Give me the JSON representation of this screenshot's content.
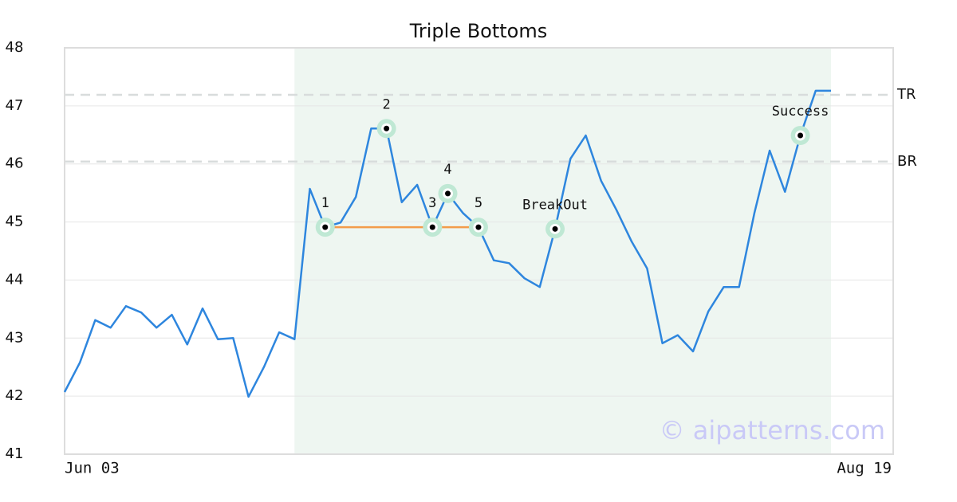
{
  "chart_data": {
    "type": "line",
    "title": "Triple Bottoms",
    "categories": [
      "Jun 03",
      null,
      null,
      null,
      null,
      null,
      null,
      null,
      null,
      null,
      null,
      null,
      null,
      null,
      null,
      null,
      null,
      null,
      null,
      null,
      null,
      null,
      null,
      null,
      null,
      null,
      null,
      null,
      null,
      null,
      null,
      null,
      null,
      null,
      null,
      null,
      null,
      null,
      null,
      null,
      null,
      null,
      null,
      null,
      null,
      null,
      null,
      null,
      null,
      null,
      "Aug 19"
    ],
    "values": [
      42.07,
      42.58,
      43.31,
      43.18,
      43.55,
      43.44,
      43.18,
      43.4,
      42.89,
      43.51,
      42.98,
      43.0,
      41.99,
      42.5,
      43.1,
      42.98,
      45.57,
      44.91,
      44.99,
      45.43,
      46.61,
      46.61,
      45.34,
      45.64,
      44.91,
      45.49,
      45.15,
      44.91,
      44.34,
      44.29,
      44.03,
      43.88,
      44.88,
      46.09,
      46.49,
      45.71,
      45.21,
      44.66,
      44.2,
      42.91,
      43.05,
      42.77,
      43.46,
      43.88,
      43.88,
      45.15,
      46.23,
      45.52,
      46.49,
      47.26,
      47.26
    ],
    "color": "#2e86de",
    "ylim": [
      41,
      48
    ],
    "yticks": [
      41,
      42,
      43,
      44,
      45,
      46,
      47,
      48
    ],
    "grid": true,
    "highlight": {
      "from": 15,
      "to": 50,
      "color": "#eef6f1"
    },
    "support": {
      "from": 17,
      "to": 27,
      "value": 44.91,
      "color": "#f39c4a"
    },
    "levels": [
      {
        "label": "TR",
        "value": 47.19
      },
      {
        "label": "BR",
        "value": 46.04
      }
    ],
    "annotations": [
      {
        "label": "1",
        "index": 17
      },
      {
        "label": "2",
        "index": 21
      },
      {
        "label": "3",
        "index": 24
      },
      {
        "label": "4",
        "index": 25
      },
      {
        "label": "5",
        "index": 27
      },
      {
        "label": "BreakOut",
        "index": 32
      },
      {
        "label": "Success",
        "index": 48
      }
    ],
    "watermark": "© aipatterns.com"
  }
}
